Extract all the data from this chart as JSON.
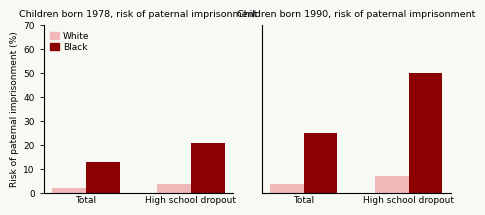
{
  "title_1978": "Children born 1978, risk of paternal imprisonment",
  "title_1990": "Children born 1990, risk of paternal imprisonment",
  "ylabel": "Risk of paternal imprisonment (%)",
  "categories": [
    "Total",
    "High school dropout"
  ],
  "data_1978": {
    "white": [
      2,
      4
    ],
    "black": [
      13,
      21
    ]
  },
  "data_1990": {
    "white": [
      4,
      7
    ],
    "black": [
      25,
      50
    ]
  },
  "color_white": "#f0b8b8",
  "color_black": "#8b0000",
  "ylim": [
    0,
    70
  ],
  "yticks": [
    0,
    10,
    20,
    30,
    40,
    50,
    60,
    70
  ],
  "bar_width": 0.32,
  "legend_labels": [
    "White",
    "Black"
  ],
  "title_fontsize": 6.8,
  "label_fontsize": 6.5,
  "tick_fontsize": 6.5,
  "legend_fontsize": 6.5,
  "background_color": "#f8f8f5"
}
